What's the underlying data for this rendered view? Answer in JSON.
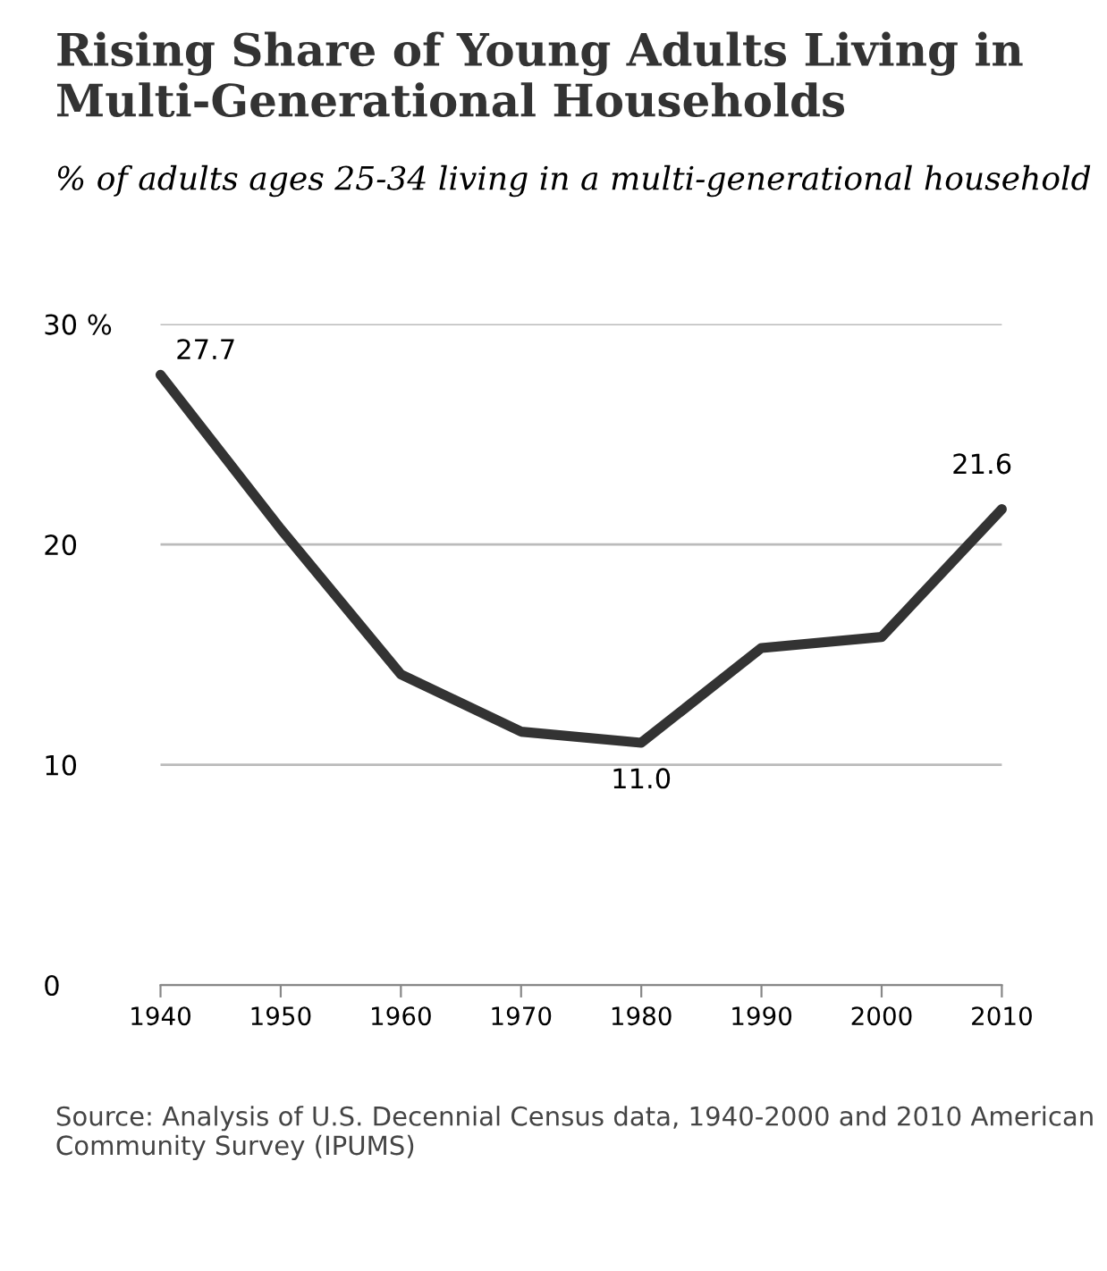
{
  "chart_data": {
    "type": "line",
    "title": "Rising Share of Young Adults Living in Multi-Generational Households",
    "subtitle": "% of adults ages 25-34 living in a multi-generational household",
    "x": [
      1940,
      1950,
      1960,
      1970,
      1980,
      1990,
      2000,
      2010
    ],
    "series": [
      {
        "color": "#333333",
        "values": [
          27.7,
          20.7,
          14.1,
          11.5,
          11.0,
          15.3,
          15.8,
          21.6
        ],
        "value_labels": [
          "27.7",
          null,
          null,
          null,
          "11.0",
          null,
          null,
          "21.6"
        ]
      }
    ],
    "xlim": [
      1940,
      2010
    ],
    "xticks": [
      1940,
      1950,
      1960,
      1970,
      1980,
      1990,
      2000,
      2010
    ],
    "ylim": [
      0,
      30
    ],
    "yticks": [
      0,
      10,
      20,
      {
        "value": 30,
        "label": "30 %"
      }
    ],
    "grid": "y",
    "marker": "none",
    "line_style": "solid",
    "annotations": [
      "Source: Analysis of U.S. Decennial Census data, 1940-2000 and 2010 American Community Survey (IPUMS)"
    ]
  }
}
